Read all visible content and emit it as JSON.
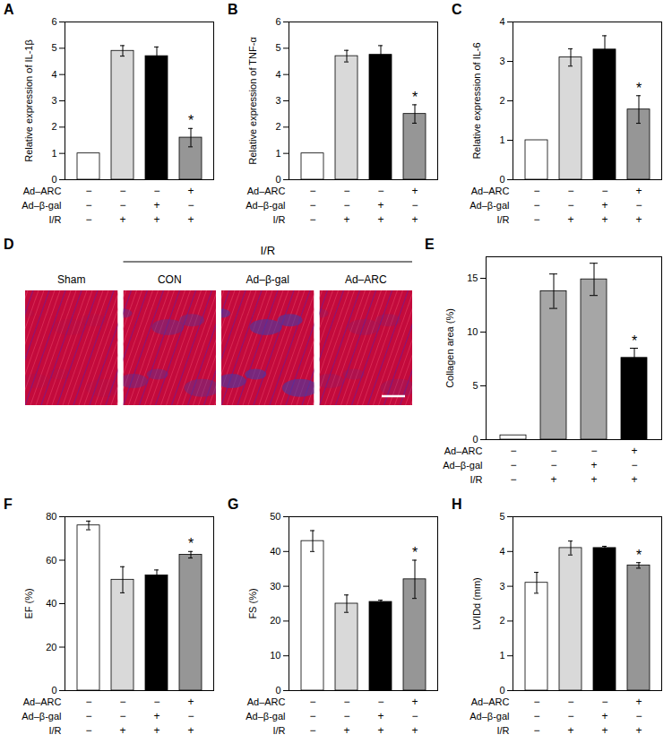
{
  "chart_data": [
    {
      "panel": "A",
      "type": "bar",
      "y_label": "Relative expression of IL-1β",
      "categories": [
        null,
        null,
        null,
        null
      ],
      "values": [
        1,
        4.9,
        4.7,
        1.6
      ],
      "errors": [
        0,
        0.2,
        0.35,
        0.35
      ],
      "significance": [
        null,
        null,
        null,
        "*"
      ],
      "colors": [
        "#ffffff",
        "#d9d9d9",
        "#000000",
        "#969696"
      ],
      "ylim": [
        0,
        6
      ],
      "yticks": [
        0,
        1,
        2,
        3,
        4,
        5,
        6
      ],
      "conditions": [
        {
          "name": "Ad–ARC",
          "values": [
            "−",
            "−",
            "−",
            "+"
          ]
        },
        {
          "name": "Ad–β-gal",
          "values": [
            "−",
            "−",
            "+",
            "−"
          ]
        },
        {
          "name": "I/R",
          "values": [
            "−",
            "+",
            "+",
            "+"
          ]
        }
      ]
    },
    {
      "panel": "B",
      "type": "bar",
      "y_label": "Relative expression of TNF-α",
      "categories": [
        null,
        null,
        null,
        null
      ],
      "values": [
        1,
        4.7,
        4.75,
        2.5
      ],
      "errors": [
        0,
        0.22,
        0.35,
        0.35
      ],
      "significance": [
        null,
        null,
        null,
        "*"
      ],
      "colors": [
        "#ffffff",
        "#d9d9d9",
        "#000000",
        "#969696"
      ],
      "ylim": [
        0,
        6
      ],
      "yticks": [
        0,
        1,
        2,
        3,
        4,
        5,
        6
      ],
      "conditions": [
        {
          "name": "Ad–ARC",
          "values": [
            "−",
            "−",
            "−",
            "+"
          ]
        },
        {
          "name": "Ad–β-gal",
          "values": [
            "−",
            "−",
            "+",
            "−"
          ]
        },
        {
          "name": "I/R",
          "values": [
            "−",
            "+",
            "+",
            "+"
          ]
        }
      ]
    },
    {
      "panel": "C",
      "type": "bar",
      "y_label": "Relative expression of IL-6",
      "categories": [
        null,
        null,
        null,
        null
      ],
      "values": [
        1,
        3.1,
        3.3,
        1.78
      ],
      "errors": [
        0,
        0.22,
        0.35,
        0.35
      ],
      "significance": [
        null,
        null,
        null,
        "*"
      ],
      "colors": [
        "#ffffff",
        "#d9d9d9",
        "#000000",
        "#969696"
      ],
      "ylim": [
        0,
        4
      ],
      "yticks": [
        0,
        1,
        2,
        3,
        4
      ],
      "conditions": [
        {
          "name": "Ad–ARC",
          "values": [
            "−",
            "−",
            "−",
            "+"
          ]
        },
        {
          "name": "Ad–β-gal",
          "values": [
            "−",
            "−",
            "+",
            "−"
          ]
        },
        {
          "name": "I/R",
          "values": [
            "−",
            "+",
            "+",
            "+"
          ]
        }
      ]
    },
    {
      "panel": "E",
      "type": "bar",
      "y_label": "Collagen area (%)",
      "categories": [
        null,
        null,
        null,
        null
      ],
      "values": [
        0.4,
        13.8,
        14.9,
        7.6
      ],
      "errors": [
        0,
        1.6,
        1.5,
        0.9
      ],
      "significance": [
        null,
        null,
        null,
        "*"
      ],
      "colors": [
        "#ffffff",
        "#a6a6a6",
        "#a6a6a6",
        "#000000"
      ],
      "ylim": [
        0,
        17
      ],
      "yticks": [
        0,
        5,
        10,
        15
      ],
      "conditions": [
        {
          "name": "Ad–ARC",
          "values": [
            "−",
            "−",
            "−",
            "+"
          ]
        },
        {
          "name": "Ad–β-gal",
          "values": [
            "−",
            "−",
            "+",
            "−"
          ]
        },
        {
          "name": "I/R",
          "values": [
            "−",
            "+",
            "+",
            "+"
          ]
        }
      ]
    },
    {
      "panel": "F",
      "type": "bar",
      "y_label": "EF (%)",
      "categories": [
        null,
        null,
        null,
        null
      ],
      "values": [
        76,
        51,
        53,
        62.5
      ],
      "errors": [
        2,
        6,
        2.5,
        1.5
      ],
      "significance": [
        null,
        null,
        null,
        "*"
      ],
      "colors": [
        "#ffffff",
        "#d9d9d9",
        "#000000",
        "#969696"
      ],
      "ylim": [
        0,
        80
      ],
      "yticks": [
        0,
        20,
        40,
        60,
        80
      ],
      "conditions": [
        {
          "name": "Ad–ARC",
          "values": [
            "−",
            "−",
            "−",
            "+"
          ]
        },
        {
          "name": "Ad–β-gal",
          "values": [
            "−",
            "−",
            "+",
            "−"
          ]
        },
        {
          "name": "I/R",
          "values": [
            "−",
            "+",
            "+",
            "+"
          ]
        }
      ]
    },
    {
      "panel": "G",
      "type": "bar",
      "y_label": "FS (%)",
      "categories": [
        null,
        null,
        null,
        null
      ],
      "values": [
        43,
        25,
        25.5,
        32
      ],
      "errors": [
        3,
        2.5,
        0.5,
        5.5
      ],
      "significance": [
        null,
        null,
        null,
        "*"
      ],
      "colors": [
        "#ffffff",
        "#d9d9d9",
        "#000000",
        "#969696"
      ],
      "ylim": [
        0,
        50
      ],
      "yticks": [
        0,
        10,
        20,
        30,
        40,
        50
      ],
      "conditions": [
        {
          "name": "Ad–ARC",
          "values": [
            "−",
            "−",
            "−",
            "+"
          ]
        },
        {
          "name": "Ad–β-gal",
          "values": [
            "−",
            "−",
            "+",
            "−"
          ]
        },
        {
          "name": "I/R",
          "values": [
            "−",
            "+",
            "+",
            "+"
          ]
        }
      ]
    },
    {
      "panel": "H",
      "type": "bar",
      "y_label": "LVIDd (mm)",
      "categories": [
        null,
        null,
        null,
        null
      ],
      "values": [
        3.1,
        4.1,
        4.1,
        3.6
      ],
      "errors": [
        0.3,
        0.2,
        0.05,
        0.08
      ],
      "significance": [
        null,
        null,
        null,
        "*"
      ],
      "colors": [
        "#ffffff",
        "#d9d9d9",
        "#000000",
        "#969696"
      ],
      "ylim": [
        0,
        5
      ],
      "yticks": [
        0,
        1,
        2,
        3,
        4,
        5
      ],
      "conditions": [
        {
          "name": "Ad–ARC",
          "values": [
            "−",
            "−",
            "−",
            "+"
          ]
        },
        {
          "name": "Ad–β-gal",
          "values": [
            "−",
            "−",
            "+",
            "−"
          ]
        },
        {
          "name": "I/R",
          "values": [
            "−",
            "+",
            "+",
            "+"
          ]
        }
      ]
    }
  ],
  "image_panel": {
    "panel": "D",
    "group_label": "I/R",
    "images": [
      "Sham",
      "CON",
      "Ad–β-gal",
      "Ad–ARC"
    ]
  }
}
